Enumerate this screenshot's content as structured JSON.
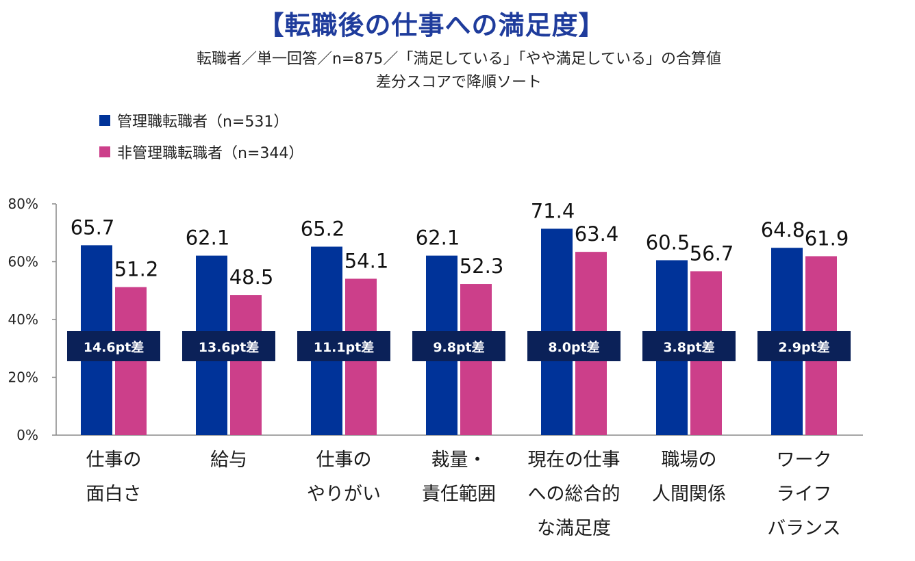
{
  "title": "【転職後の仕事への満足度】",
  "subtitle_line1": "転職者／単一回答／n=875／「満足している」「やや満足している」の合算値",
  "subtitle_line2": "差分スコアで降順ソート",
  "colors": {
    "manager": "#003399",
    "non_manager": "#cc3f8a",
    "diff_box": "#0b2158",
    "title": "#1f3c9c",
    "axis": "#888888"
  },
  "chart_data": {
    "type": "bar",
    "ylim": [
      0,
      80
    ],
    "yticks": [
      0,
      20,
      40,
      60,
      80
    ],
    "ytick_labels": [
      "0%",
      "20%",
      "40%",
      "60%",
      "80%"
    ],
    "categories": [
      [
        "仕事の",
        "面白さ"
      ],
      [
        "給与"
      ],
      [
        "仕事の",
        "やりがい"
      ],
      [
        "裁量・",
        "責任範囲"
      ],
      [
        "現在の仕事",
        "への総合的",
        "な満足度"
      ],
      [
        "職場の",
        "人間関係"
      ],
      [
        "ワーク",
        "ライフ",
        "バランス"
      ]
    ],
    "series": [
      {
        "name": "管理職転職者（n=531）",
        "values": [
          65.7,
          62.1,
          65.2,
          62.1,
          71.4,
          60.5,
          64.8
        ]
      },
      {
        "name": "非管理職転職者（n=344）",
        "values": [
          51.2,
          48.5,
          54.1,
          52.3,
          63.4,
          56.7,
          61.9
        ]
      }
    ],
    "data_labels": [
      [
        "65.7",
        "62.1",
        "65.2",
        "62.1",
        "71.4",
        "60.5",
        "64.8"
      ],
      [
        "51.2",
        "48.5",
        "54.1",
        "52.3",
        "63.4",
        "56.7",
        "61.9"
      ]
    ],
    "diff_labels": [
      "14.6pt差",
      "13.6pt差",
      "11.1pt差",
      "9.8pt差",
      "8.0pt差",
      "3.8pt差",
      "2.9pt差"
    ]
  }
}
